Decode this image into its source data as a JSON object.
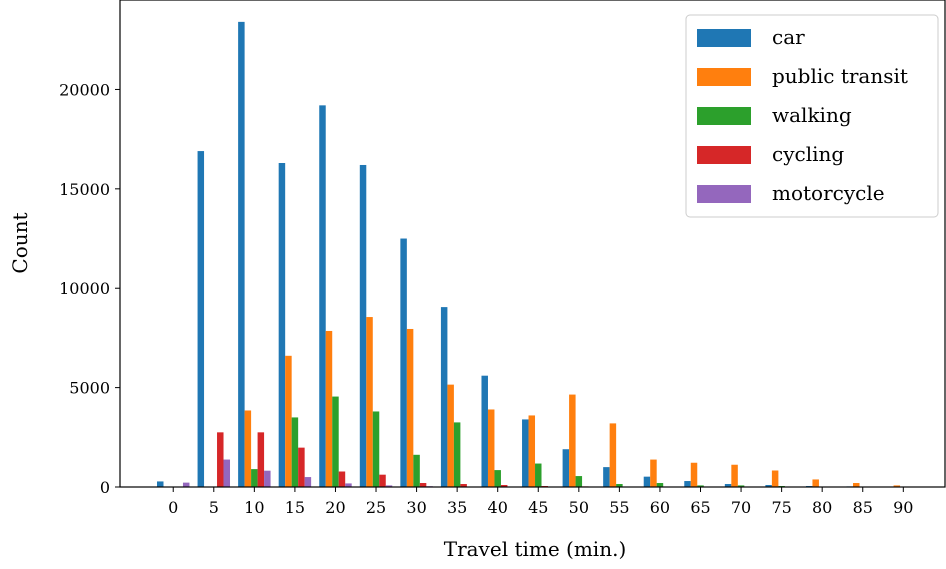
{
  "chart_data": {
    "type": "bar",
    "xlabel": "Travel time (min.)",
    "ylabel": "Count",
    "categories": [
      "0",
      "5",
      "10",
      "15",
      "20",
      "25",
      "30",
      "35",
      "40",
      "45",
      "50",
      "55",
      "60",
      "65",
      "70",
      "75",
      "80",
      "85",
      "90"
    ],
    "yticks": [
      "0",
      "5000",
      "10000",
      "15000",
      "20000"
    ],
    "ylim": [
      0,
      24500
    ],
    "legend_position": "top-right",
    "grid": false,
    "series": [
      {
        "name": "car",
        "color": "#1f77b4",
        "values": [
          280,
          16900,
          23400,
          16300,
          19200,
          16200,
          12500,
          9050,
          5600,
          3400,
          1900,
          1000,
          520,
          300,
          150,
          100,
          50,
          30,
          20
        ]
      },
      {
        "name": "public transit",
        "color": "#ff7f0e",
        "values": [
          0,
          0,
          3850,
          6600,
          7850,
          8550,
          7950,
          5150,
          3900,
          3600,
          4650,
          3200,
          1380,
          1220,
          1120,
          830,
          380,
          200,
          80
        ]
      },
      {
        "name": "walking",
        "color": "#2ca02c",
        "values": [
          0,
          0,
          900,
          3500,
          4550,
          3800,
          1620,
          3250,
          850,
          1180,
          550,
          150,
          200,
          80,
          80,
          50,
          20,
          10,
          5
        ]
      },
      {
        "name": "cycling",
        "color": "#d62728",
        "values": [
          0,
          2750,
          2750,
          1980,
          780,
          620,
          200,
          150,
          100,
          50,
          30,
          20,
          10,
          10,
          5,
          5,
          0,
          0,
          0
        ]
      },
      {
        "name": "motorcycle",
        "color": "#9467bd",
        "values": [
          220,
          1380,
          820,
          500,
          180,
          80,
          40,
          20,
          10,
          5,
          5,
          0,
          0,
          0,
          0,
          0,
          0,
          0,
          0
        ]
      }
    ]
  }
}
